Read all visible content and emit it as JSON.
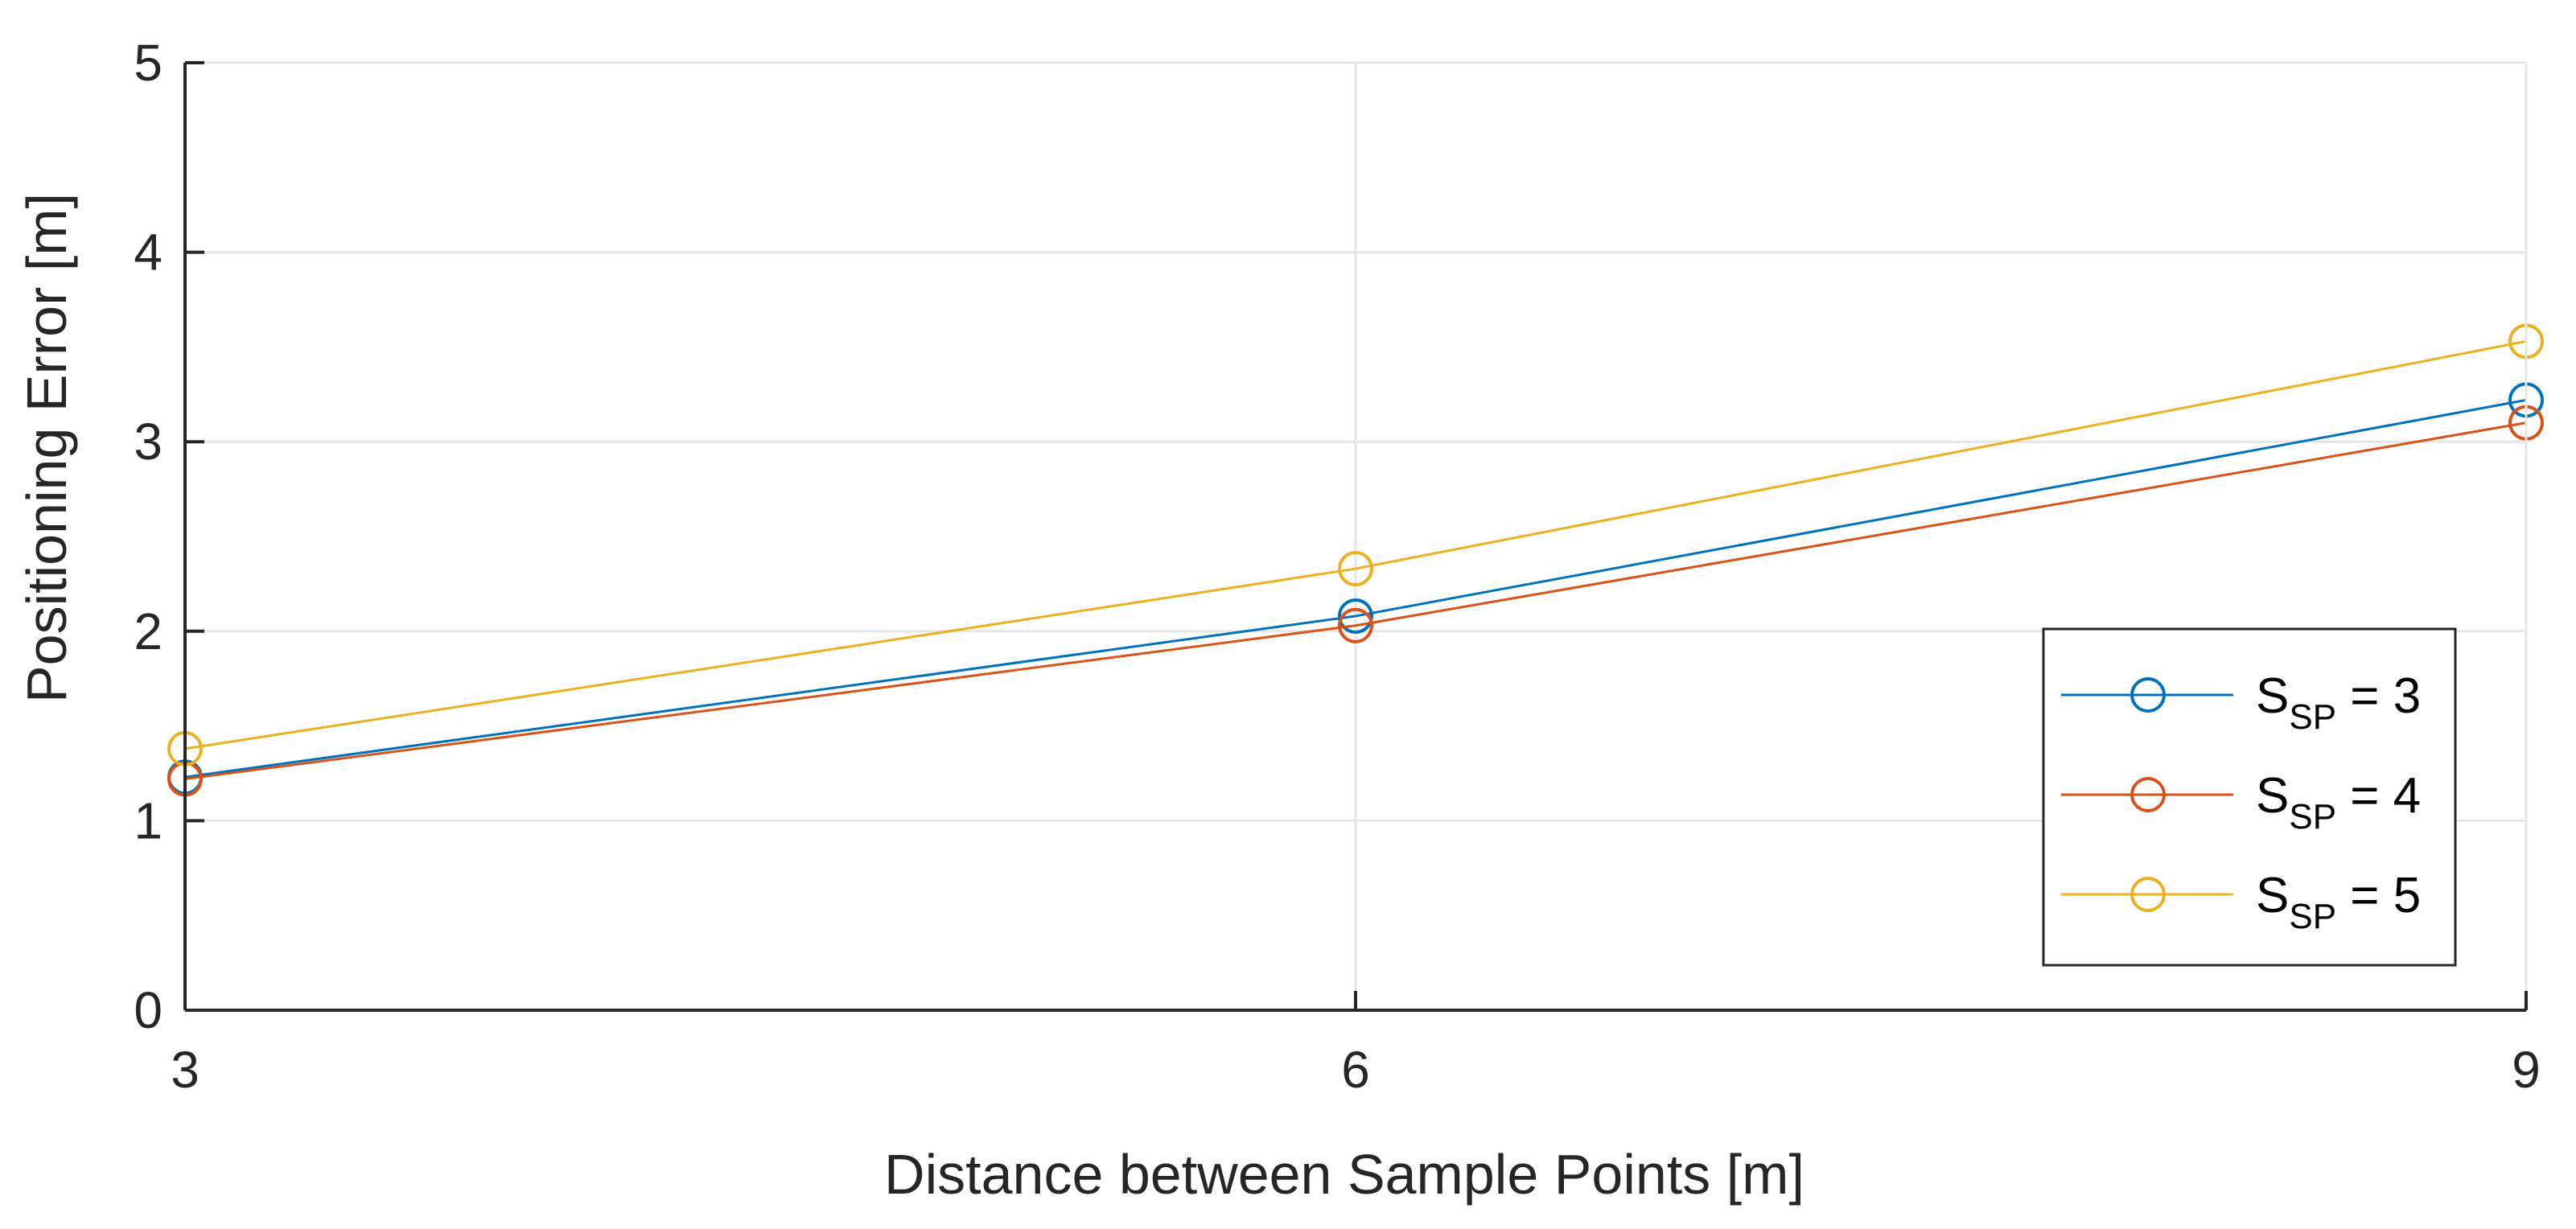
{
  "chart_data": {
    "type": "line",
    "title": "",
    "xlabel": "Distance between Sample Points [m]",
    "ylabel": "Positioning Error [m]",
    "x": [
      3,
      6,
      9
    ],
    "xticks": [
      "3",
      "6",
      "9"
    ],
    "yticks": [
      "0",
      "1",
      "2",
      "3",
      "4",
      "5"
    ],
    "xlim": [
      3,
      9
    ],
    "ylim": [
      0,
      5
    ],
    "grid": true,
    "legend_position": "bottom-right",
    "marker": "circle",
    "series": [
      {
        "name_main": "S",
        "name_sub": "SP",
        "name_tail": " = 3",
        "color": "#0072BD",
        "values": [
          1.23,
          2.08,
          3.22
        ]
      },
      {
        "name_main": "S",
        "name_sub": "SP",
        "name_tail": " = 4",
        "color": "#D95319",
        "values": [
          1.22,
          2.03,
          3.1
        ]
      },
      {
        "name_main": "S",
        "name_sub": "SP",
        "name_tail": " = 5",
        "color": "#EDB120",
        "values": [
          1.38,
          2.33,
          3.53
        ]
      }
    ]
  }
}
